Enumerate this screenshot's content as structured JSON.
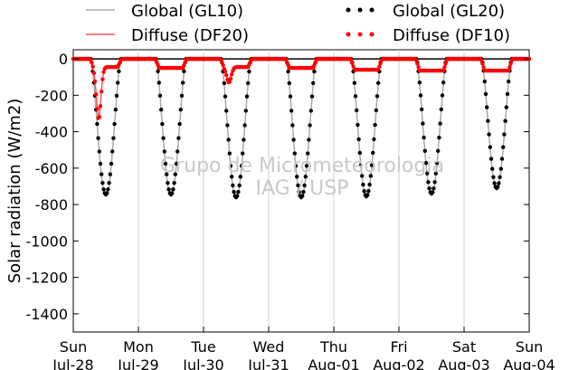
{
  "chart_data": {
    "type": "scatter",
    "ylabel": "Solar radiation (W/m2)",
    "xlabel": "",
    "ylim": [
      -1500,
      50
    ],
    "yticks": [
      0,
      -200,
      -400,
      -600,
      -800,
      -1000,
      -1200,
      -1400
    ],
    "xlim": [
      0,
      7
    ],
    "xticks": [
      {
        "day": "Sun",
        "date": "Jul-28"
      },
      {
        "day": "Mon",
        "date": "Jul-29"
      },
      {
        "day": "Tue",
        "date": "Jul-30"
      },
      {
        "day": "Wed",
        "date": "Jul-31"
      },
      {
        "day": "Thu",
        "date": "Aug-01"
      },
      {
        "day": "Fri",
        "date": "Aug-02"
      },
      {
        "day": "Sat",
        "date": "Aug-03"
      },
      {
        "day": "Sun",
        "date": "Aug-04"
      }
    ],
    "grid": "vertical",
    "legend": "top",
    "watermark": [
      "Grupo de Micrometeorologia",
      "IAG / USP"
    ],
    "colors": {
      "gl10": "#aaaaaa",
      "df20": "#ff5555",
      "gl20": "#000000",
      "df10": "#ff0000",
      "watermark": "#c8c8c8"
    },
    "series": [
      {
        "name": "Global (GL10)",
        "style": "line",
        "peaks": [
          -755,
          -755,
          -770,
          -770,
          -765,
          -750,
          -720
        ]
      },
      {
        "name": "Diffuse (DF20)",
        "style": "line",
        "peaks": [
          -320,
          -45,
          -120,
          -45,
          -55,
          -60,
          -60
        ]
      },
      {
        "name": "Global (GL20)",
        "style": "dots",
        "peaks": [
          -745,
          -745,
          -760,
          -760,
          -755,
          -740,
          -710
        ]
      },
      {
        "name": "Diffuse (DF10)",
        "style": "dots",
        "peaks": [
          -330,
          -50,
          -130,
          -50,
          -60,
          -65,
          -65
        ]
      }
    ]
  }
}
